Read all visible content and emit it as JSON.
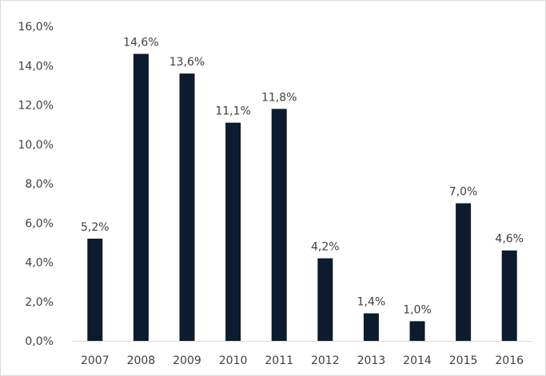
{
  "chart_data": {
    "type": "bar",
    "title": "",
    "xlabel": "",
    "ylabel": "",
    "categories": [
      "2007",
      "2008",
      "2009",
      "2010",
      "2011",
      "2012",
      "2013",
      "2014",
      "2015",
      "2016"
    ],
    "values": [
      5.2,
      14.6,
      13.6,
      11.1,
      11.8,
      4.2,
      1.4,
      1.0,
      7.0,
      4.6
    ],
    "data_labels": [
      "5,2%",
      "14,6%",
      "13,6%",
      "11,1%",
      "11,8%",
      "4,2%",
      "1,4%",
      "1,0%",
      "7,0%",
      "4,6%"
    ],
    "ylim": [
      0,
      16
    ],
    "yticks": [
      0,
      2,
      4,
      6,
      8,
      10,
      12,
      14,
      16
    ],
    "ytick_labels": [
      "0,0%",
      "2,0%",
      "4,0%",
      "6,0%",
      "8,0%",
      "10,0%",
      "12,0%",
      "14,0%",
      "16,0%"
    ],
    "grid": false,
    "legend": "none",
    "bar_color": "#0d1b2e",
    "axis_color": "#d9d9d9",
    "text_color": "#404040"
  }
}
